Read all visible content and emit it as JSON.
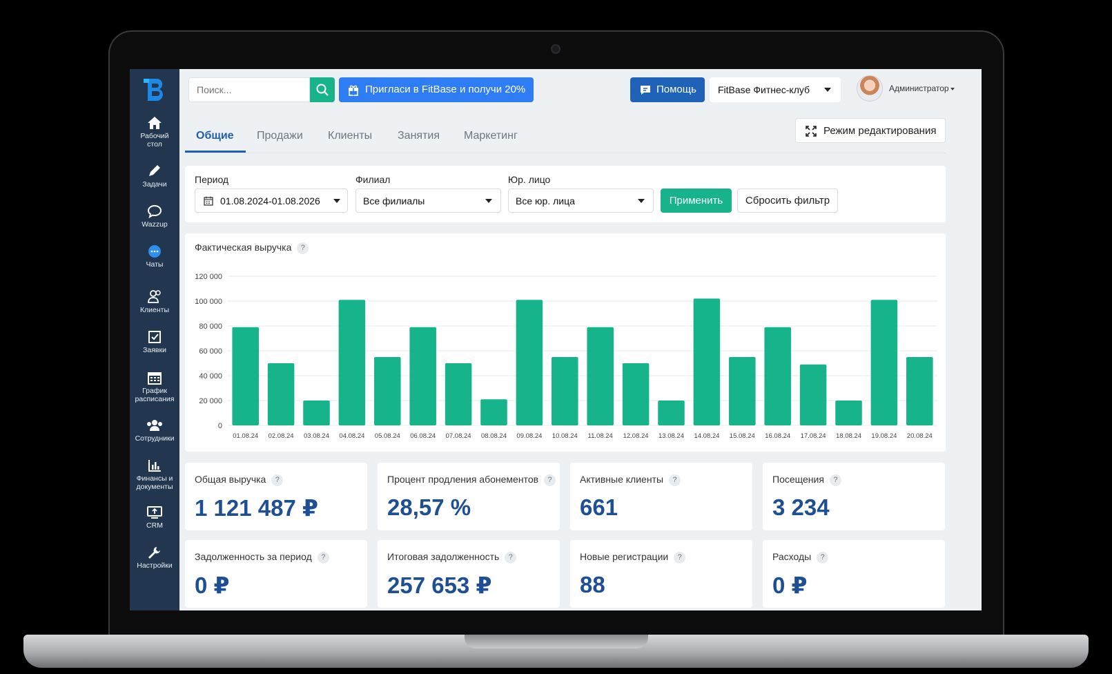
{
  "search": {
    "placeholder": "Поиск..."
  },
  "header": {
    "invite_label": "Пригласи в FitBase и получи 20%",
    "help_label": "Помощь",
    "club_selected": "FitBase Фитнес-клуб",
    "user_role": "Администратор"
  },
  "sidebar": {
    "items": [
      {
        "label": "Рабочий стол",
        "icon": "home-icon"
      },
      {
        "label": "Задачи",
        "icon": "pencil-icon"
      },
      {
        "label": "Wazzup",
        "icon": "speech-bubble-icon"
      },
      {
        "label": "Чаты",
        "icon": "chat-icon"
      },
      {
        "label": "Клиенты",
        "icon": "clients-icon"
      },
      {
        "label": "Заявки",
        "icon": "requests-icon"
      },
      {
        "label": "График расписания",
        "icon": "calendar-icon"
      },
      {
        "label": "Сотрудники",
        "icon": "staff-icon"
      },
      {
        "label": "Финансы и документы",
        "icon": "bar-chart-icon"
      },
      {
        "label": "CRM",
        "icon": "crm-icon"
      },
      {
        "label": "Настройки",
        "icon": "wrench-icon"
      }
    ]
  },
  "tabs": [
    "Общие",
    "Продажи",
    "Клиенты",
    "Занятия",
    "Маркетинг"
  ],
  "edit_mode_label": "Режим редактирования",
  "filters": {
    "period_label": "Период",
    "period_value": "01.08.2024-01.08.2026",
    "branch_label": "Филиал",
    "branch_value": "Все филиалы",
    "entity_label": "Юр. лицо",
    "entity_value": "Все юр. лица",
    "apply_label": "Применить",
    "reset_label": "Сбросить фильтр"
  },
  "chart_title": "Фактическая выручка",
  "help_mark": "?",
  "chart_data": {
    "type": "bar",
    "title": "Фактическая выручка",
    "categories": [
      "01.08.24",
      "02.08.24",
      "03.08.24",
      "04.08.24",
      "05.08.24",
      "06.08.24",
      "07.08.24",
      "08.08.24",
      "09.08.24",
      "10.08.24",
      "11.08.24",
      "12.08.24",
      "13.08.24",
      "14.08.24",
      "15.08.24",
      "16.08.24",
      "17.08.24",
      "18.08.24",
      "19.08.24",
      "20.08.24"
    ],
    "values": [
      79000,
      50000,
      20000,
      101000,
      55000,
      79000,
      50000,
      21000,
      101000,
      55000,
      79000,
      50000,
      20000,
      102000,
      55000,
      79000,
      49000,
      20000,
      101000,
      55000
    ],
    "yticks": [
      "0",
      "20 000",
      "40 000",
      "60 000",
      "80 000",
      "100 000",
      "120 000"
    ],
    "ylim": [
      0,
      120000
    ],
    "grid": true,
    "color": "#17b48b"
  },
  "kpis": [
    {
      "label": "Общая выручка",
      "value": "1 121 487 ₽"
    },
    {
      "label": "Процент продления абонементов",
      "value": "28,57 %"
    },
    {
      "label": "Активные клиенты",
      "value": "661"
    },
    {
      "label": "Посещения",
      "value": "3 234"
    },
    {
      "label": "Задолженность за период",
      "value": "0 ₽"
    },
    {
      "label": "Итоговая задолженность",
      "value": "257 653 ₽"
    },
    {
      "label": "Новые регистрации",
      "value": "88"
    },
    {
      "label": "Расходы",
      "value": "0 ₽"
    }
  ]
}
